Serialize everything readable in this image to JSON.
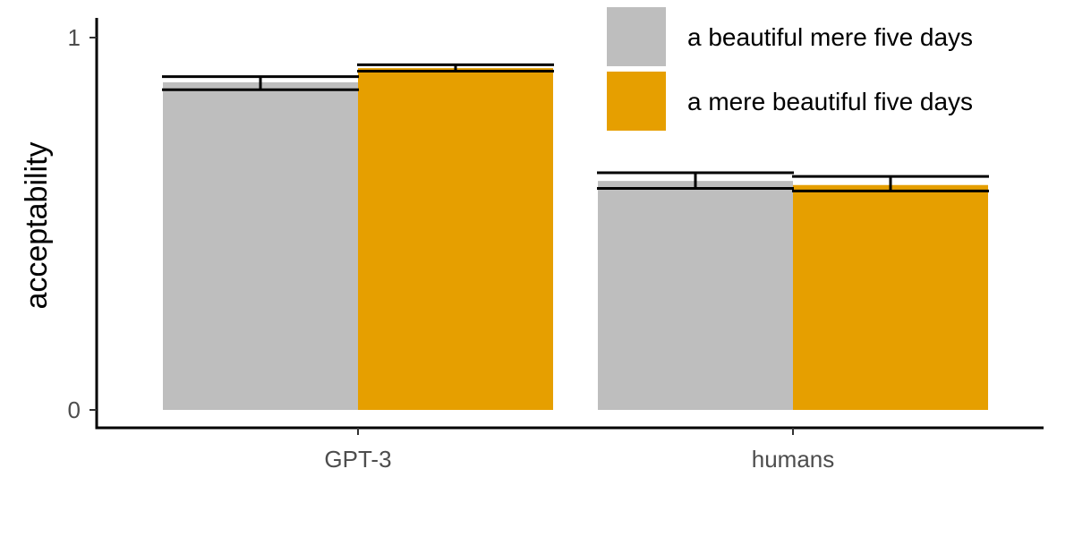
{
  "chart_data": {
    "type": "bar",
    "title": "",
    "xlabel": "",
    "ylabel": "acceptability",
    "ylim": [
      0,
      1
    ],
    "yticks": [
      0,
      1
    ],
    "categories": [
      "GPT-3",
      "humans"
    ],
    "series": [
      {
        "name": "a beautiful mere five days",
        "color": "#bebebe",
        "values": [
          0.88,
          0.615
        ],
        "err_low": [
          0.86,
          0.595
        ],
        "err_high": [
          0.895,
          0.637
        ]
      },
      {
        "name": "a mere beautiful five days",
        "color": "#e69f00",
        "values": [
          0.918,
          0.604
        ],
        "err_low": [
          0.91,
          0.588
        ],
        "err_high": [
          0.927,
          0.627
        ]
      }
    ],
    "grid": false,
    "legend_position": "top-right"
  }
}
